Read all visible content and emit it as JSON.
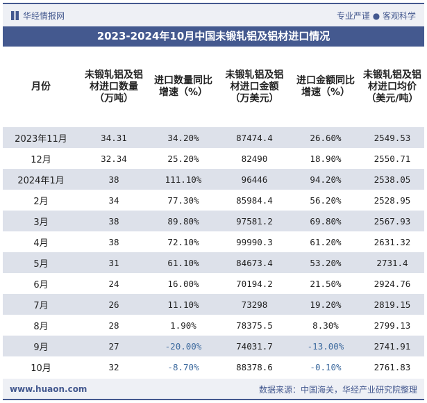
{
  "header": {
    "logo_text": "华经情报网",
    "slogan": "专业严谨 ● 客观科学"
  },
  "title": "2023-2024年10月中国未锻轧铝及铝材进口情况",
  "columns": [
    "月份",
    "未锻轧铝及铝材进口数量（万吨）",
    "进口数量同比增速（%）",
    "未锻轧铝及铝材进口金额（万美元）",
    "进口金额同比增速（%）",
    "未锻轧铝及铝材进口均价（美元/吨）"
  ],
  "rows": [
    [
      "2023年11月",
      "34.31",
      "34.20%",
      "87474.4",
      "26.60%",
      "2549.53"
    ],
    [
      "12月",
      "32.34",
      "25.20%",
      "82490",
      "18.90%",
      "2550.71"
    ],
    [
      "2024年1月",
      "38",
      "111.10%",
      "96446",
      "94.20%",
      "2538.05"
    ],
    [
      "2月",
      "34",
      "77.30%",
      "85984.4",
      "56.20%",
      "2528.95"
    ],
    [
      "3月",
      "38",
      "89.80%",
      "97581.2",
      "69.80%",
      "2567.93"
    ],
    [
      "4月",
      "38",
      "72.10%",
      "99990.3",
      "61.20%",
      "2631.32"
    ],
    [
      "5月",
      "31",
      "61.10%",
      "84673.4",
      "53.20%",
      "2731.4"
    ],
    [
      "6月",
      "24",
      "16.00%",
      "70194.2",
      "21.50%",
      "2924.76"
    ],
    [
      "7月",
      "26",
      "11.10%",
      "73298",
      "19.20%",
      "2819.15"
    ],
    [
      "8月",
      "28",
      "1.90%",
      "78375.5",
      "8.30%",
      "2799.13"
    ],
    [
      "9月",
      "27",
      "-20.00%",
      "74031.7",
      "-13.00%",
      "2741.91"
    ],
    [
      "10月",
      "32",
      "-8.70%",
      "88378.6",
      "-0.10%",
      "2761.83"
    ]
  ],
  "footer": {
    "url": "www.huaon.com",
    "source": "数据来源：中国海关，华经产业研究院整理"
  },
  "colors": {
    "brand": "#44598f",
    "stripe": "#dde1ea",
    "negative": "#3d6a9e"
  }
}
